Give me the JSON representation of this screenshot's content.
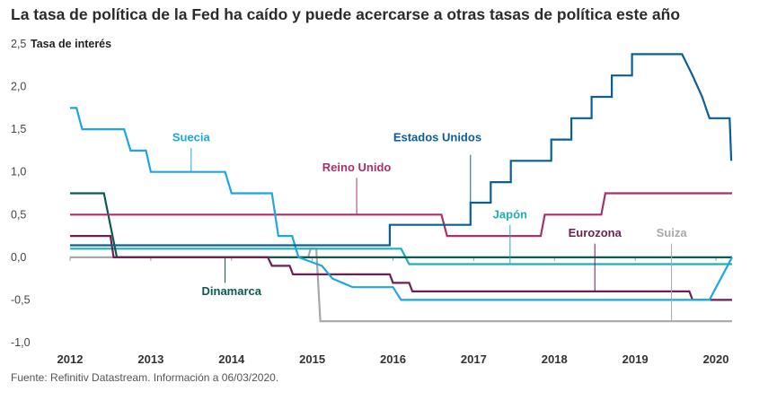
{
  "title": "La tasa de política de la Fed ha caído y puede acercarse a otras tasas de política este año",
  "source": "Fuente: Refinitiv Datastream. Información a 06/03/2020.",
  "chart_data": {
    "type": "line",
    "ylabel": "Tasa de interés",
    "xlabel": "",
    "ylim": [
      -1.0,
      2.5
    ],
    "xlim": [
      2012.0,
      2020.2
    ],
    "yticks": [
      "2,5",
      "2,0",
      "1,5",
      "1,0",
      "0,5",
      "0,0",
      "-0,5",
      "-1,0"
    ],
    "ytick_values": [
      2.5,
      2.0,
      1.5,
      1.0,
      0.5,
      0.0,
      -0.5,
      -1.0
    ],
    "xticks": [
      "2012",
      "2013",
      "2014",
      "2015",
      "2016",
      "2017",
      "2018",
      "2019",
      "2020"
    ],
    "xtick_values": [
      2012,
      2013,
      2014,
      2015,
      2016,
      2017,
      2018,
      2019,
      2020
    ],
    "grid": false,
    "series": [
      {
        "name": "Estados Unidos",
        "color": "#0a5f96",
        "points": [
          [
            2012.0,
            0.14
          ],
          [
            2015.96,
            0.14
          ],
          [
            2015.96,
            0.38
          ],
          [
            2016.96,
            0.38
          ],
          [
            2016.96,
            0.64
          ],
          [
            2017.21,
            0.64
          ],
          [
            2017.21,
            0.88
          ],
          [
            2017.46,
            0.88
          ],
          [
            2017.46,
            1.13
          ],
          [
            2017.96,
            1.13
          ],
          [
            2017.96,
            1.38
          ],
          [
            2018.21,
            1.38
          ],
          [
            2018.21,
            1.63
          ],
          [
            2018.46,
            1.63
          ],
          [
            2018.46,
            1.88
          ],
          [
            2018.71,
            1.88
          ],
          [
            2018.71,
            2.13
          ],
          [
            2018.96,
            2.13
          ],
          [
            2018.96,
            2.38
          ],
          [
            2019.58,
            2.38
          ],
          [
            2019.71,
            2.13
          ],
          [
            2019.83,
            1.88
          ],
          [
            2019.92,
            1.63
          ],
          [
            2020.17,
            1.63
          ],
          [
            2020.19,
            1.13
          ]
        ],
        "label_x": 2016.55,
        "label_y": 1.4,
        "leader": [
          [
            2016.96,
            1.2
          ],
          [
            2016.96,
            0.64
          ]
        ]
      },
      {
        "name": "Suecia",
        "color": "#1ea6e0",
        "points": [
          [
            2012.0,
            1.75
          ],
          [
            2012.08,
            1.75
          ],
          [
            2012.15,
            1.5
          ],
          [
            2012.67,
            1.5
          ],
          [
            2012.75,
            1.25
          ],
          [
            2012.94,
            1.25
          ],
          [
            2013.0,
            1.0
          ],
          [
            2013.92,
            1.0
          ],
          [
            2014.0,
            0.75
          ],
          [
            2014.5,
            0.75
          ],
          [
            2014.58,
            0.25
          ],
          [
            2014.75,
            0.25
          ],
          [
            2014.83,
            0.0
          ],
          [
            2015.12,
            -0.1
          ],
          [
            2015.25,
            -0.25
          ],
          [
            2015.5,
            -0.35
          ],
          [
            2016.0,
            -0.35
          ],
          [
            2016.1,
            -0.5
          ],
          [
            2019.92,
            -0.5
          ],
          [
            2020.2,
            0.0
          ]
        ],
        "label_x": 2013.5,
        "label_y": 1.4,
        "leader": [
          [
            2013.5,
            1.28
          ],
          [
            2013.5,
            1.0
          ]
        ]
      },
      {
        "name": "Reino Unido",
        "color": "#a8306e",
        "points": [
          [
            2012.0,
            0.5
          ],
          [
            2016.6,
            0.5
          ],
          [
            2016.67,
            0.25
          ],
          [
            2017.83,
            0.25
          ],
          [
            2017.88,
            0.5
          ],
          [
            2018.58,
            0.5
          ],
          [
            2018.63,
            0.75
          ],
          [
            2020.2,
            0.75
          ]
        ],
        "label_x": 2015.55,
        "label_y": 1.05,
        "leader": [
          [
            2015.55,
            0.93
          ],
          [
            2015.55,
            0.5
          ]
        ]
      },
      {
        "name": "Japón",
        "color": "#1fb0b4",
        "points": [
          [
            2012.0,
            0.1
          ],
          [
            2016.1,
            0.1
          ],
          [
            2016.2,
            -0.08
          ],
          [
            2020.2,
            -0.08
          ]
        ],
        "label_x": 2017.45,
        "label_y": 0.5,
        "leader": [
          [
            2017.45,
            0.38
          ],
          [
            2017.45,
            -0.08
          ]
        ]
      },
      {
        "name": "Eurozona",
        "color": "#6e1f55",
        "points": [
          [
            2012.0,
            0.25
          ],
          [
            2012.5,
            0.25
          ],
          [
            2012.54,
            0.0
          ],
          [
            2014.45,
            0.0
          ],
          [
            2014.5,
            -0.1
          ],
          [
            2014.72,
            -0.1
          ],
          [
            2014.76,
            -0.2
          ],
          [
            2015.96,
            -0.2
          ],
          [
            2016.0,
            -0.3
          ],
          [
            2016.2,
            -0.3
          ],
          [
            2016.24,
            -0.4
          ],
          [
            2019.67,
            -0.4
          ],
          [
            2019.71,
            -0.5
          ],
          [
            2020.2,
            -0.5
          ]
        ],
        "label_x": 2018.5,
        "label_y": 0.28,
        "leader": [
          [
            2018.5,
            0.16
          ],
          [
            2018.5,
            -0.4
          ]
        ]
      },
      {
        "name": "Suiza",
        "color": "#a8a8a8",
        "points": [
          [
            2012.0,
            0.0
          ],
          [
            2014.95,
            0.0
          ],
          [
            2014.98,
            0.1
          ],
          [
            2015.05,
            0.1
          ],
          [
            2015.1,
            -0.75
          ],
          [
            2020.2,
            -0.75
          ]
        ],
        "label_x": 2019.45,
        "label_y": 0.28,
        "leader": [
          [
            2019.45,
            0.16
          ],
          [
            2019.45,
            -0.75
          ]
        ]
      },
      {
        "name": "Dinamarca",
        "color": "#0d5a50",
        "points": [
          [
            2012.0,
            0.75
          ],
          [
            2012.42,
            0.75
          ],
          [
            2012.58,
            0.0
          ],
          [
            2020.2,
            0.0
          ]
        ],
        "label_x": 2014.0,
        "label_y": -0.4,
        "leader": [
          [
            2013.92,
            -0.3
          ],
          [
            2013.92,
            0.0
          ]
        ]
      }
    ]
  }
}
